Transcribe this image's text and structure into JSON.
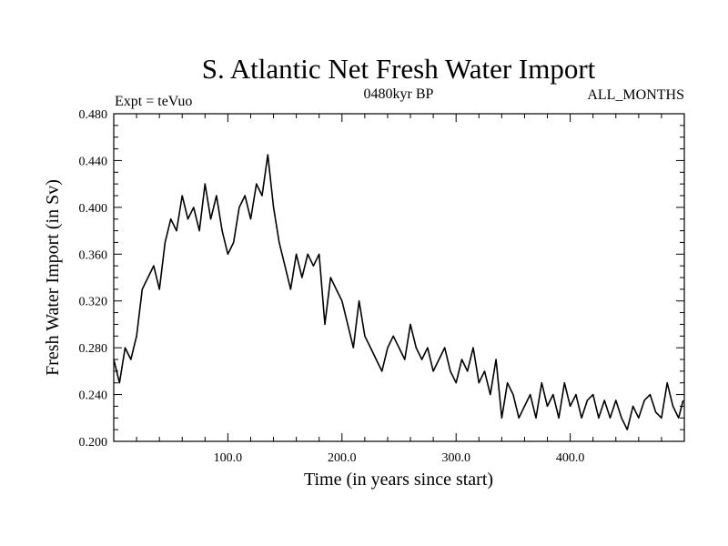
{
  "chart_data": {
    "type": "line",
    "title": "S. Atlantic Net Fresh Water Import",
    "subtitle_left": "Expt = teVuo",
    "subtitle_center": "0480kyr BP",
    "subtitle_right": "ALL_MONTHS",
    "xlabel": "Time (in years since start)",
    "ylabel": "Fresh Water Import (in Sv)",
    "xlim": [
      0,
      500
    ],
    "ylim": [
      0.2,
      0.48
    ],
    "x_ticks": [
      100,
      200,
      300,
      400
    ],
    "x_tick_labels": [
      "100.0",
      "200.0",
      "300.0",
      "400.0"
    ],
    "y_ticks": [
      0.2,
      0.24,
      0.28,
      0.32,
      0.36,
      0.4,
      0.44,
      0.48
    ],
    "y_tick_labels": [
      "0.200",
      "0.240",
      "0.280",
      "0.320",
      "0.360",
      "0.400",
      "0.440",
      "0.480"
    ],
    "grid": false,
    "line_color": "#000000",
    "series": [
      {
        "x": [
          0,
          5,
          10,
          15,
          20,
          25,
          30,
          35,
          40,
          45,
          50,
          55,
          60,
          65,
          70,
          75,
          80,
          85,
          90,
          95,
          100,
          105,
          110,
          115,
          120,
          125,
          130,
          135,
          140,
          145,
          150,
          155,
          160,
          165,
          170,
          175,
          180,
          185,
          190,
          195,
          200,
          205,
          210,
          215,
          220,
          225,
          230,
          235,
          240,
          245,
          250,
          255,
          260,
          265,
          270,
          275,
          280,
          285,
          290,
          295,
          300,
          305,
          310,
          315,
          320,
          325,
          330,
          335,
          340,
          345,
          350,
          355,
          360,
          365,
          370,
          375,
          380,
          385,
          390,
          395,
          400,
          405,
          410,
          415,
          420,
          425,
          430,
          435,
          440,
          445,
          450,
          455,
          460,
          465,
          470,
          475,
          480,
          485,
          490,
          495,
          499
        ],
        "y": [
          0.27,
          0.25,
          0.28,
          0.27,
          0.29,
          0.33,
          0.34,
          0.35,
          0.33,
          0.37,
          0.39,
          0.38,
          0.41,
          0.39,
          0.4,
          0.38,
          0.42,
          0.39,
          0.41,
          0.38,
          0.36,
          0.37,
          0.4,
          0.41,
          0.39,
          0.42,
          0.41,
          0.445,
          0.4,
          0.37,
          0.35,
          0.33,
          0.36,
          0.34,
          0.36,
          0.35,
          0.36,
          0.3,
          0.34,
          0.33,
          0.32,
          0.3,
          0.28,
          0.32,
          0.29,
          0.28,
          0.27,
          0.26,
          0.28,
          0.29,
          0.28,
          0.27,
          0.3,
          0.28,
          0.27,
          0.28,
          0.26,
          0.27,
          0.28,
          0.26,
          0.25,
          0.27,
          0.26,
          0.28,
          0.25,
          0.26,
          0.24,
          0.27,
          0.22,
          0.25,
          0.24,
          0.22,
          0.23,
          0.24,
          0.22,
          0.25,
          0.23,
          0.24,
          0.22,
          0.25,
          0.23,
          0.24,
          0.22,
          0.235,
          0.24,
          0.22,
          0.235,
          0.22,
          0.235,
          0.22,
          0.21,
          0.23,
          0.22,
          0.235,
          0.24,
          0.225,
          0.22,
          0.25,
          0.23,
          0.22,
          0.235
        ]
      }
    ]
  }
}
